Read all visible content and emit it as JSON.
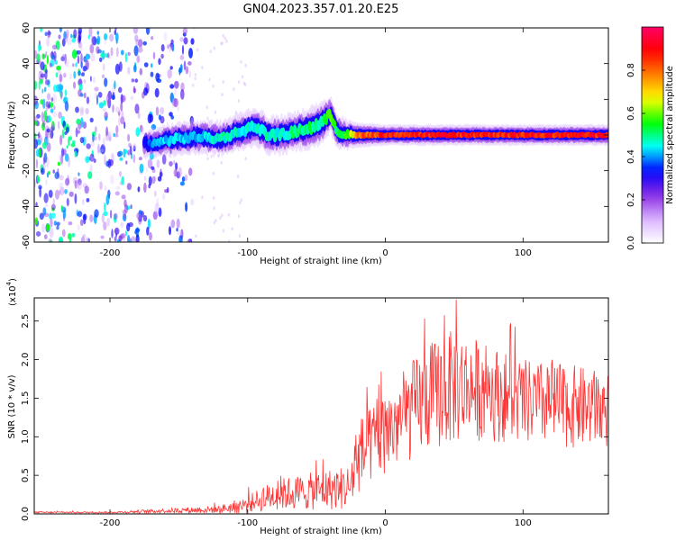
{
  "figure": {
    "title": "GN04.2023.357.01.20.E25"
  },
  "chart_data": [
    {
      "type": "heatmap",
      "name": "spectrogram",
      "xlabel": "Height of straight line (km)",
      "ylabel": "Frequency (Hz)",
      "xlim": [
        -255,
        162
      ],
      "ylim": [
        -60,
        60
      ],
      "x_ticks": [
        -200,
        -100,
        0,
        100
      ],
      "x_tick_labels": [
        "-200",
        "-100",
        "0",
        "100"
      ],
      "y_ticks": [
        -60,
        -40,
        -20,
        0,
        20,
        40,
        60
      ],
      "y_tick_labels": [
        "-60",
        "-40",
        "-20",
        "0",
        "20",
        "40",
        "60"
      ],
      "grid": false,
      "colorbar": {
        "label": "Normalized spectral amplitude",
        "range": [
          0,
          1
        ],
        "ticks": [
          0.0,
          0.2,
          0.4,
          0.6,
          0.8
        ],
        "tick_labels": [
          "0.0",
          "0.2",
          "0.4",
          "0.6",
          "0.8"
        ],
        "colormap": [
          "#ffffff",
          "#d9b3ff",
          "#8a2be2",
          "#0000ff",
          "#00ffff",
          "#00ff00",
          "#ffff00",
          "#ff8000",
          "#ff0000",
          "#ff0066"
        ]
      },
      "ridge": [
        {
          "x": -175,
          "y": -5,
          "width": 6,
          "amp": 0.35
        },
        {
          "x": -165,
          "y": -4,
          "width": 7,
          "amp": 0.45
        },
        {
          "x": -150,
          "y": -2,
          "width": 8,
          "amp": 0.45
        },
        {
          "x": -135,
          "y": -1,
          "width": 8,
          "amp": 0.45
        },
        {
          "x": -120,
          "y": -2,
          "width": 8,
          "amp": 0.5
        },
        {
          "x": -105,
          "y": 2,
          "width": 9,
          "amp": 0.5
        },
        {
          "x": -95,
          "y": 5,
          "width": 9,
          "amp": 0.5
        },
        {
          "x": -85,
          "y": 0,
          "width": 9,
          "amp": 0.5
        },
        {
          "x": -75,
          "y": 0,
          "width": 9,
          "amp": 0.5
        },
        {
          "x": -65,
          "y": 2,
          "width": 9,
          "amp": 0.55
        },
        {
          "x": -55,
          "y": 4,
          "width": 10,
          "amp": 0.55
        },
        {
          "x": -45,
          "y": 7,
          "width": 10,
          "amp": 0.55
        },
        {
          "x": -40,
          "y": 12,
          "width": 8,
          "amp": 0.6
        },
        {
          "x": -35,
          "y": 2,
          "width": 8,
          "amp": 0.55
        },
        {
          "x": -28,
          "y": 0,
          "width": 7,
          "amp": 0.6
        },
        {
          "x": -20,
          "y": 0,
          "width": 6,
          "amp": 0.85
        },
        {
          "x": 0,
          "y": 0,
          "width": 5,
          "amp": 0.95
        },
        {
          "x": 40,
          "y": 0,
          "width": 5,
          "amp": 0.95
        },
        {
          "x": 80,
          "y": 0,
          "width": 5,
          "amp": 0.95
        },
        {
          "x": 120,
          "y": 0,
          "width": 5,
          "amp": 0.95
        },
        {
          "x": 162,
          "y": 0,
          "width": 5,
          "amp": 0.95
        }
      ],
      "noise_region": {
        "x_from": -255,
        "x_to": -140,
        "amp": 0.5
      }
    },
    {
      "type": "line",
      "name": "snr",
      "xlabel": "Height of straight line (km)",
      "ylabel": "SNR (10 * v/v)",
      "y_scale_note": "(x10",
      "y_scale_exponent": "4",
      "xlim": [
        -255,
        162
      ],
      "ylim": [
        0,
        2.8
      ],
      "x_ticks": [
        -200,
        -100,
        0,
        100
      ],
      "x_tick_labels": [
        "-200",
        "-100",
        "0",
        "100"
      ],
      "y_ticks": [
        0.0,
        0.5,
        1.0,
        1.5,
        2.0,
        2.5
      ],
      "y_tick_labels": [
        "0.0",
        "0.5",
        "1.0",
        "1.5",
        "2.0",
        "2.5"
      ],
      "grid": false,
      "color": "#ff3333",
      "envelope": [
        {
          "x": -255,
          "mean": 0.02,
          "spread": 0.01
        },
        {
          "x": -200,
          "mean": 0.02,
          "spread": 0.01
        },
        {
          "x": -160,
          "mean": 0.04,
          "spread": 0.03
        },
        {
          "x": -120,
          "mean": 0.06,
          "spread": 0.05
        },
        {
          "x": -100,
          "mean": 0.12,
          "spread": 0.12
        },
        {
          "x": -80,
          "mean": 0.25,
          "spread": 0.2
        },
        {
          "x": -50,
          "mean": 0.3,
          "spread": 0.25
        },
        {
          "x": -25,
          "mean": 0.35,
          "spread": 0.3
        },
        {
          "x": -22,
          "mean": 0.7,
          "spread": 0.5
        },
        {
          "x": -10,
          "mean": 0.9,
          "spread": 0.5
        },
        {
          "x": 10,
          "mean": 1.2,
          "spread": 0.6
        },
        {
          "x": 30,
          "mean": 1.5,
          "spread": 0.7
        },
        {
          "x": 50,
          "mean": 1.65,
          "spread": 0.75
        },
        {
          "x": 70,
          "mean": 1.6,
          "spread": 0.65
        },
        {
          "x": 100,
          "mean": 1.45,
          "spread": 0.55
        },
        {
          "x": 130,
          "mean": 1.4,
          "spread": 0.55
        },
        {
          "x": 162,
          "mean": 1.35,
          "spread": 0.5
        }
      ]
    }
  ]
}
